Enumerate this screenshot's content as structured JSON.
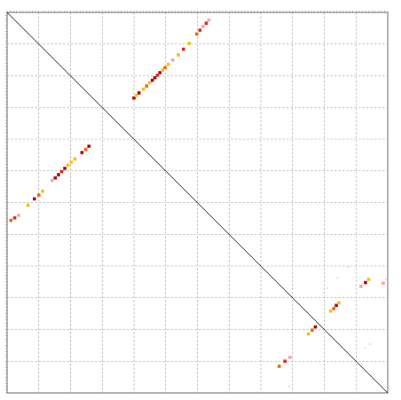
{
  "chart_data": {
    "type": "scatter",
    "title": "",
    "xlabel": "",
    "ylabel": "",
    "xlim": [
      0,
      12
    ],
    "ylim": [
      0,
      12
    ],
    "grid": true,
    "grid_lines": [
      1,
      2,
      3,
      4,
      5,
      6,
      7,
      8,
      9,
      10,
      11
    ],
    "diagonal": {
      "from": [
        0,
        12
      ],
      "to": [
        12,
        0
      ]
    },
    "point_colors": {
      "dark": "#a50f15",
      "red": "#d7301f",
      "orange": "#f16913",
      "yellow": "#f0c419",
      "pink": "#f4a6a6",
      "light": "#fddbc7"
    },
    "series": [
      {
        "segment": "upper-arc",
        "points": [
          {
            "x": 4.0,
            "y": 9.3,
            "c": "dark"
          },
          {
            "x": 4.08,
            "y": 9.38,
            "c": "yellow"
          },
          {
            "x": 4.16,
            "y": 9.46,
            "c": "dark"
          },
          {
            "x": 4.3,
            "y": 9.58,
            "c": "yellow"
          },
          {
            "x": 4.4,
            "y": 9.68,
            "c": "orange"
          },
          {
            "x": 4.5,
            "y": 9.78,
            "c": "yellow"
          },
          {
            "x": 4.58,
            "y": 9.86,
            "c": "dark"
          },
          {
            "x": 4.66,
            "y": 9.94,
            "c": "dark"
          },
          {
            "x": 4.74,
            "y": 10.02,
            "c": "red"
          },
          {
            "x": 4.82,
            "y": 10.1,
            "c": "dark"
          },
          {
            "x": 4.9,
            "y": 10.18,
            "c": "yellow"
          },
          {
            "x": 4.98,
            "y": 10.26,
            "c": "orange"
          },
          {
            "x": 5.08,
            "y": 10.36,
            "c": "yellow"
          },
          {
            "x": 5.22,
            "y": 10.5,
            "c": "pink"
          },
          {
            "x": 5.4,
            "y": 10.66,
            "c": "yellow"
          },
          {
            "x": 5.56,
            "y": 10.84,
            "c": "red"
          },
          {
            "x": 5.74,
            "y": 11.02,
            "c": "yellow"
          },
          {
            "x": 5.98,
            "y": 11.32,
            "c": "orange"
          },
          {
            "x": 6.08,
            "y": 11.44,
            "c": "red"
          },
          {
            "x": 6.18,
            "y": 11.56,
            "c": "pink"
          },
          {
            "x": 6.28,
            "y": 11.66,
            "c": "red"
          },
          {
            "x": 6.36,
            "y": 11.76,
            "c": "pink"
          }
        ]
      },
      {
        "segment": "lower-arc",
        "points": [
          {
            "x": 0.12,
            "y": 5.44,
            "c": "orange"
          },
          {
            "x": 0.24,
            "y": 5.52,
            "c": "red"
          },
          {
            "x": 0.36,
            "y": 5.6,
            "c": "pink"
          },
          {
            "x": 0.66,
            "y": 5.92,
            "c": "yellow"
          },
          {
            "x": 0.86,
            "y": 6.12,
            "c": "dark"
          },
          {
            "x": 1.0,
            "y": 6.24,
            "c": "orange"
          },
          {
            "x": 1.12,
            "y": 6.36,
            "c": "yellow"
          },
          {
            "x": 1.42,
            "y": 6.7,
            "c": "pink"
          },
          {
            "x": 1.52,
            "y": 6.78,
            "c": "dark"
          },
          {
            "x": 1.62,
            "y": 6.88,
            "c": "dark"
          },
          {
            "x": 1.72,
            "y": 6.98,
            "c": "red"
          },
          {
            "x": 1.82,
            "y": 7.08,
            "c": "dark"
          },
          {
            "x": 1.92,
            "y": 7.18,
            "c": "yellow"
          },
          {
            "x": 2.02,
            "y": 7.28,
            "c": "yellow"
          },
          {
            "x": 2.14,
            "y": 7.38,
            "c": "yellow"
          },
          {
            "x": 2.36,
            "y": 7.58,
            "c": "dark"
          },
          {
            "x": 2.48,
            "y": 7.68,
            "c": "orange"
          },
          {
            "x": 2.58,
            "y": 7.78,
            "c": "dark"
          }
        ]
      },
      {
        "segment": "lower-right",
        "points": [
          {
            "x": 8.58,
            "y": 0.84,
            "c": "orange"
          },
          {
            "x": 8.76,
            "y": 1.0,
            "c": "red"
          },
          {
            "x": 8.92,
            "y": 1.12,
            "c": "pink"
          },
          {
            "x": 9.5,
            "y": 1.86,
            "c": "yellow"
          },
          {
            "x": 9.62,
            "y": 1.98,
            "c": "orange"
          },
          {
            "x": 9.72,
            "y": 2.08,
            "c": "dark"
          },
          {
            "x": 10.2,
            "y": 2.58,
            "c": "yellow"
          },
          {
            "x": 10.3,
            "y": 2.66,
            "c": "orange"
          },
          {
            "x": 10.38,
            "y": 2.76,
            "c": "dark"
          },
          {
            "x": 10.46,
            "y": 2.84,
            "c": "yellow"
          },
          {
            "x": 10.1,
            "y": 3.3,
            "c": "light"
          },
          {
            "x": 10.4,
            "y": 3.62,
            "c": "light"
          },
          {
            "x": 10.76,
            "y": 3.96,
            "c": "light"
          },
          {
            "x": 11.16,
            "y": 3.36,
            "c": "pink"
          },
          {
            "x": 11.3,
            "y": 3.48,
            "c": "dark"
          },
          {
            "x": 11.4,
            "y": 3.58,
            "c": "yellow"
          },
          {
            "x": 11.86,
            "y": 3.46,
            "c": "pink"
          },
          {
            "x": 11.94,
            "y": 3.58,
            "c": "light"
          },
          {
            "x": 11.3,
            "y": 1.42,
            "c": "light"
          },
          {
            "x": 11.44,
            "y": 1.54,
            "c": "light"
          },
          {
            "x": 8.9,
            "y": 0.2,
            "c": "light"
          }
        ]
      }
    ]
  }
}
